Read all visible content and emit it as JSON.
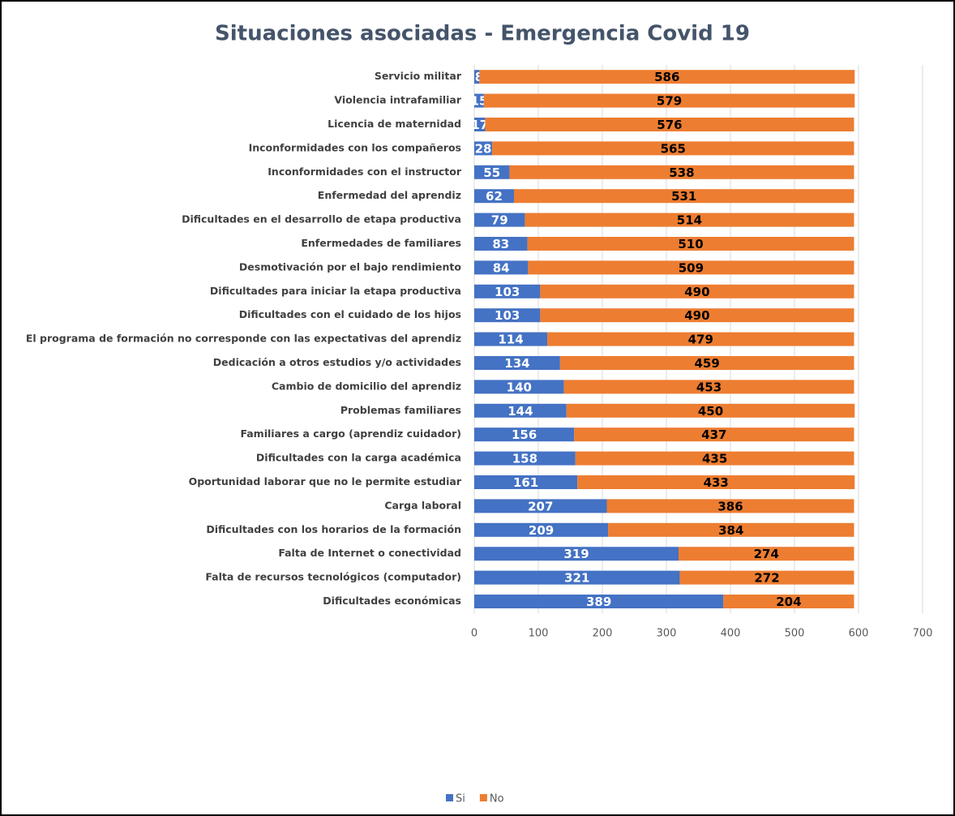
{
  "chart_data": {
    "type": "stacked_barh",
    "title": "Situaciones asociadas - Emergencia Covid 19",
    "categories": [
      "Servicio militar",
      "Violencia intrafamiliar",
      "Licencia de maternidad",
      "Inconformidades con los compañeros",
      "Inconformidades con el instructor",
      "Enfermedad del aprendiz",
      "Dificultades en el desarrollo de etapa productiva",
      "Enfermedades de familiares ",
      "Desmotivación por el bajo rendimiento",
      "Dificultades para iniciar la etapa productiva",
      "Dificultades con el cuidado de los hijos",
      "El programa de formación no corresponde con las expectativas del aprendiz",
      "Dedicación a otros estudios y/o actividades ",
      "Cambio de domicilio del aprendiz",
      "Problemas familiares",
      "Familiares a cargo (aprendiz cuidador)",
      "Dificultades con la carga académica ",
      "Oportunidad laborar que no le permite estudiar",
      "Carga laboral ",
      "Dificultades con los horarios de la formación",
      "Falta de Internet o conectividad",
      "Falta de recursos tecnológicos (computador)",
      "Dificultades económicas"
    ],
    "series": [
      {
        "name": "Si",
        "color": "#4472c4",
        "label_color": "#ffffff",
        "values": [
          8,
          15,
          17,
          28,
          55,
          62,
          79,
          83,
          84,
          103,
          103,
          114,
          134,
          140,
          144,
          156,
          158,
          161,
          207,
          209,
          319,
          321,
          389
        ]
      },
      {
        "name": "No",
        "color": "#ed7d31",
        "label_color": "#000000",
        "values": [
          586,
          579,
          576,
          565,
          538,
          531,
          514,
          510,
          509,
          490,
          490,
          479,
          459,
          453,
          450,
          437,
          435,
          433,
          386,
          384,
          274,
          272,
          204
        ]
      }
    ],
    "xlim": [
      0,
      700
    ],
    "xticks": [
      0,
      100,
      200,
      300,
      400,
      500,
      600,
      700
    ],
    "grid": true,
    "legend": "bottom"
  }
}
